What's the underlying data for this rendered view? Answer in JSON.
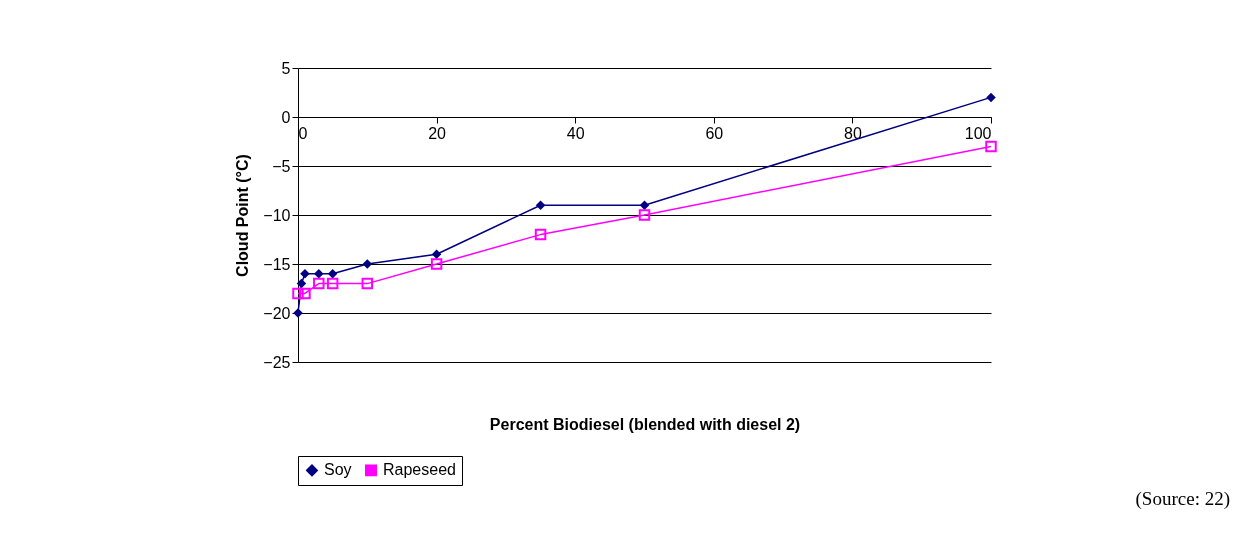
{
  "chart_data": {
    "type": "line",
    "xlabel": "Percent Biodiesel (blended with diesel 2)",
    "ylabel": "Cloud Point (°C)",
    "xlim": [
      0,
      100
    ],
    "xticks": [
      0,
      20,
      40,
      60,
      80,
      100
    ],
    "ylim": [
      -25,
      5
    ],
    "yticks": [
      -25,
      -20,
      -15,
      -10,
      -5,
      0,
      5
    ],
    "grid": "y",
    "legend": "bottom",
    "series": [
      {
        "name": "Soy",
        "color": "#000080",
        "marker": "diamond",
        "x": [
          0,
          0.5,
          1,
          3,
          5,
          10,
          20,
          35,
          50,
          100
        ],
        "values": [
          -20,
          -17,
          -16,
          -16,
          -16,
          -15,
          -14,
          -9,
          -9,
          2
        ]
      },
      {
        "name": "Rapeseed",
        "color": "#ff00ff",
        "marker": "square",
        "x": [
          0,
          1,
          3,
          5,
          10,
          20,
          35,
          50,
          100
        ],
        "values": [
          -18,
          -18,
          -17,
          -17,
          -17,
          -15,
          -12,
          -10,
          -3
        ]
      }
    ],
    "annotations": [
      "(Source: 22)"
    ]
  }
}
